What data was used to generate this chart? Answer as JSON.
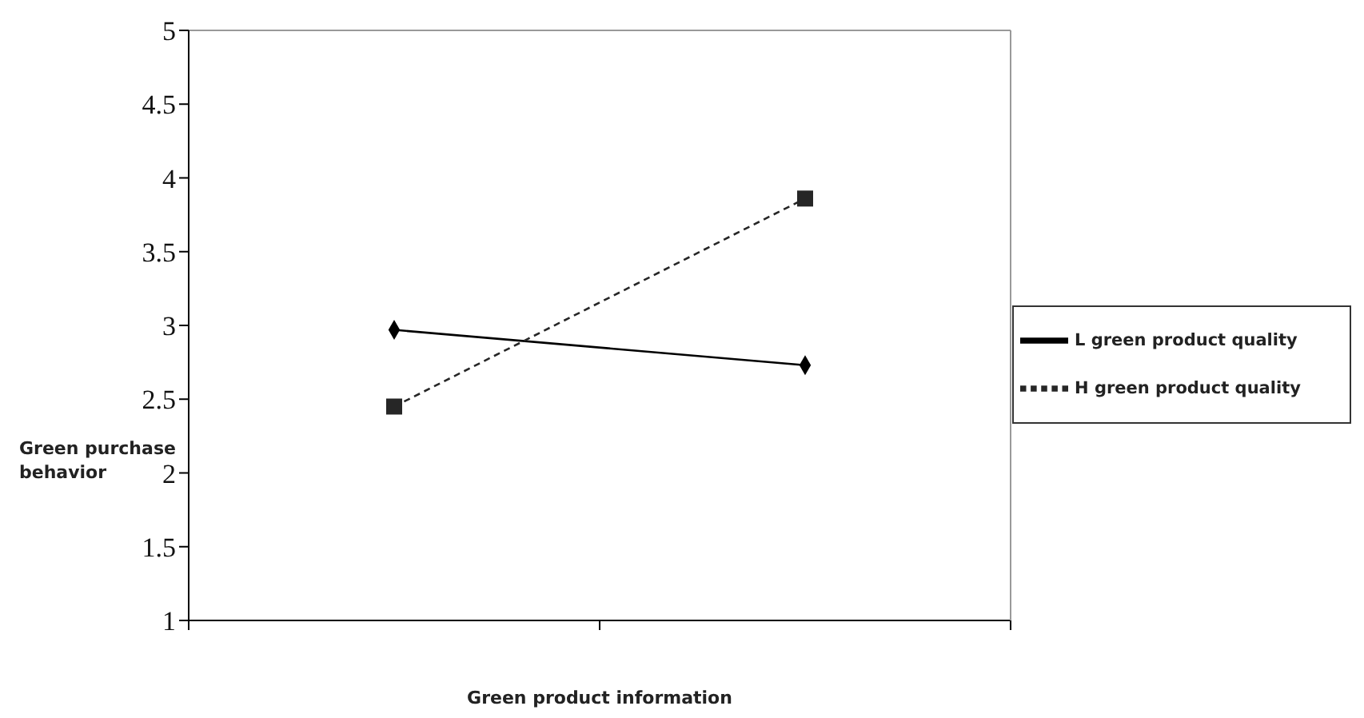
{
  "chart_data": {
    "type": "line",
    "xlabel": "Green product information",
    "ylabel": "Green purchase behavior",
    "categories": [
      null,
      null
    ],
    "series": [
      {
        "name": "L green product quality",
        "color": "#000000",
        "values": [
          2.97,
          2.73
        ],
        "marker": "diamond",
        "line_style": "solid"
      },
      {
        "name": "H green product quality",
        "color": "#262626",
        "values": [
          2.45,
          3.86
        ],
        "marker": "square",
        "line_style": "dashed"
      }
    ],
    "ylim": [
      1,
      5
    ],
    "yticks": [
      1,
      1.5,
      2,
      2.5,
      3,
      3.5,
      4,
      4.5,
      5
    ],
    "grid": false,
    "legend": "right"
  }
}
